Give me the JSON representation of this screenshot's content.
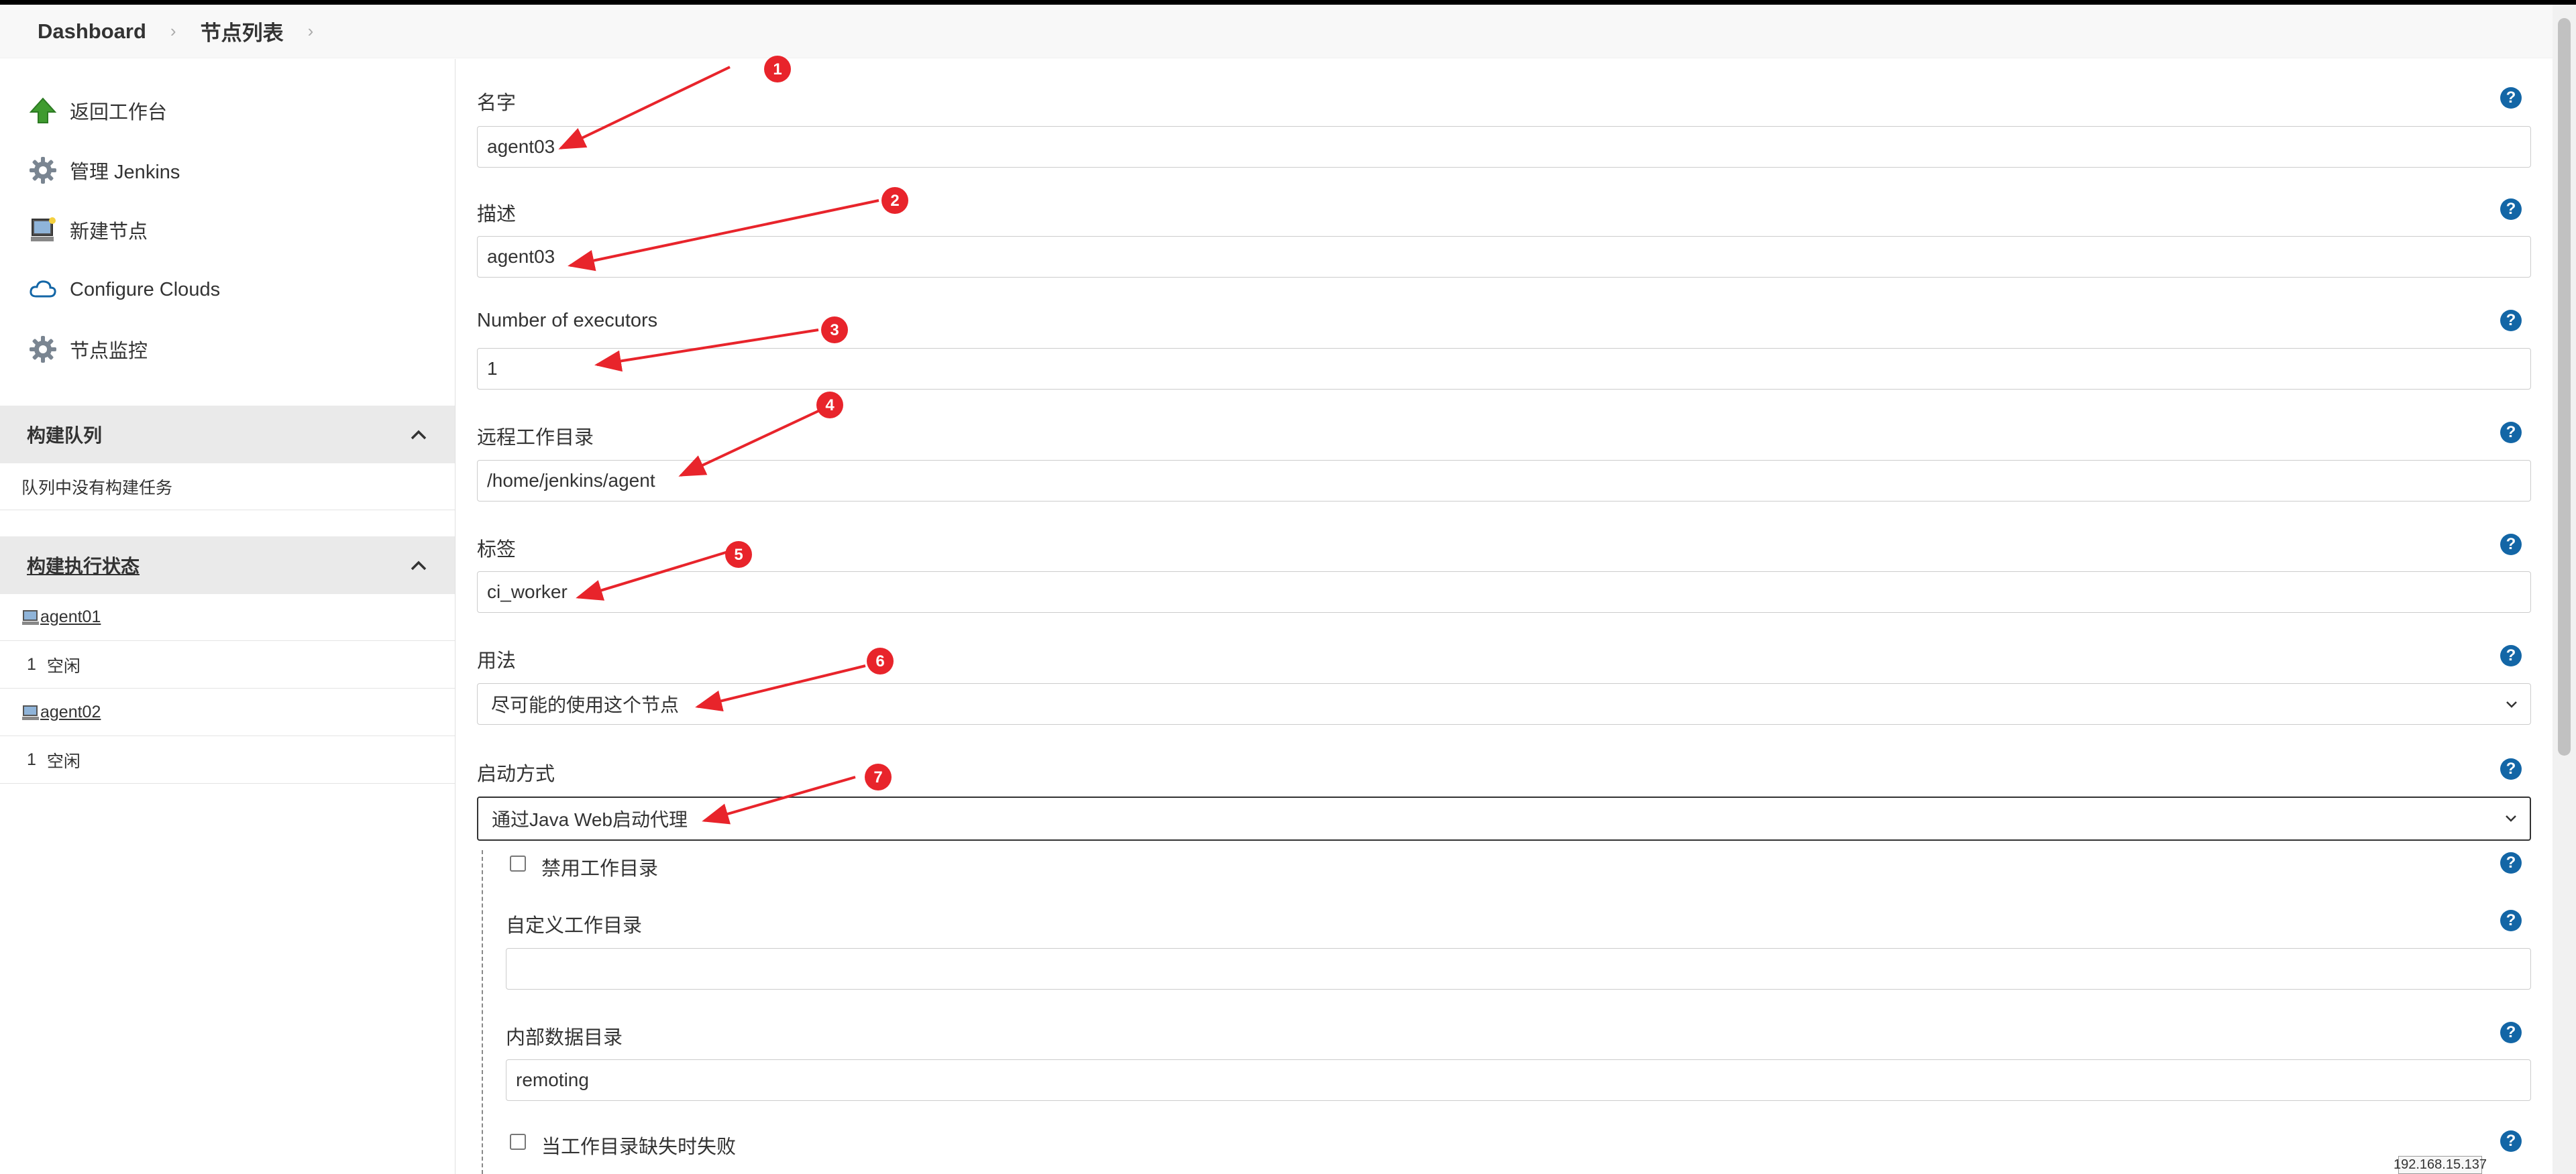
{
  "breadcrumb": {
    "home": "Dashboard",
    "current": "节点列表"
  },
  "sidebar": {
    "tasks": [
      {
        "label": "返回工作台",
        "icon": "up-arrow-icon"
      },
      {
        "label": "管理 Jenkins",
        "icon": "gear-icon"
      },
      {
        "label": "新建节点",
        "icon": "computer-icon"
      },
      {
        "label": "Configure Clouds",
        "icon": "cloud-icon"
      },
      {
        "label": "节点监控",
        "icon": "gear-icon"
      }
    ],
    "build_queue": {
      "title": "构建队列",
      "empty_text": "队列中没有构建任务"
    },
    "executor_status": {
      "title": "构建执行状态",
      "agents": [
        {
          "name": "agent01",
          "executor_num": "1",
          "state": "空闲"
        },
        {
          "name": "agent02",
          "executor_num": "1",
          "state": "空闲"
        }
      ]
    }
  },
  "form": {
    "name": {
      "label": "名字",
      "value": "agent03"
    },
    "description": {
      "label": "描述",
      "value": "agent03"
    },
    "executors": {
      "label": "Number of executors",
      "value": "1"
    },
    "remote_root": {
      "label": "远程工作目录",
      "value": "/home/jenkins/agent"
    },
    "labels": {
      "label": "标签",
      "value": "ci_worker"
    },
    "usage": {
      "label": "用法",
      "value": "尽可能的使用这个节点"
    },
    "launch_method": {
      "label": "启动方式",
      "value": "通过Java Web启动代理"
    },
    "disable_workdir": {
      "label": "禁用工作目录",
      "checked": false
    },
    "custom_workdir": {
      "label": "自定义工作目录",
      "value": ""
    },
    "internal_data_dir": {
      "label": "内部数据目录",
      "value": "remoting"
    },
    "fail_if_missing": {
      "label": "当工作目录缺失时失败",
      "checked": false
    },
    "help_glyph": "?"
  },
  "annotations": [
    "1",
    "2",
    "3",
    "4",
    "5",
    "6",
    "7"
  ],
  "tooltip": {
    "text": "192.168.15.137"
  },
  "colors": {
    "help": "#1366a6",
    "annotation": "#e8242b",
    "panel_head": "#eaeaea"
  }
}
